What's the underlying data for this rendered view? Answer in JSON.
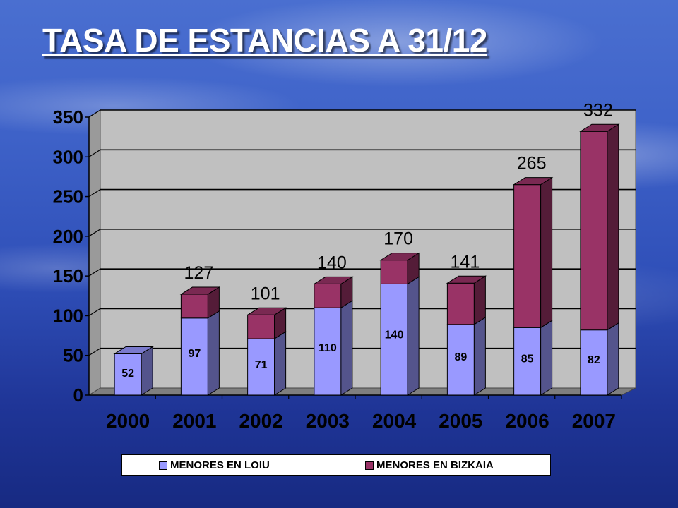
{
  "slide": {
    "title": "TASA DE ESTANCIAS A 31/12"
  },
  "chart_data": {
    "type": "bar",
    "stacked": true,
    "three_d": true,
    "categories": [
      "2000",
      "2001",
      "2002",
      "2003",
      "2004",
      "2005",
      "2006",
      "2007"
    ],
    "series": [
      {
        "name": "MENORES EN LOIU",
        "color": "#9999ff",
        "values": [
          52,
          97,
          71,
          110,
          140,
          89,
          85,
          82
        ]
      },
      {
        "name": "MENORES EN BIZKAIA",
        "color": "#993366",
        "values": [
          0,
          30,
          30,
          30,
          30,
          52,
          180,
          250
        ]
      }
    ],
    "totals": [
      "",
      "127",
      "101",
      "140",
      "170",
      "141",
      "265",
      "332"
    ],
    "loiu_labels": [
      "52",
      "97",
      "71",
      "110",
      "140",
      "89",
      "85",
      "82"
    ],
    "y_ticks": [
      "0",
      "50",
      "100",
      "150",
      "200",
      "250",
      "300",
      "350"
    ],
    "ylim": [
      0,
      350
    ],
    "grid": true,
    "legend_position": "bottom"
  }
}
